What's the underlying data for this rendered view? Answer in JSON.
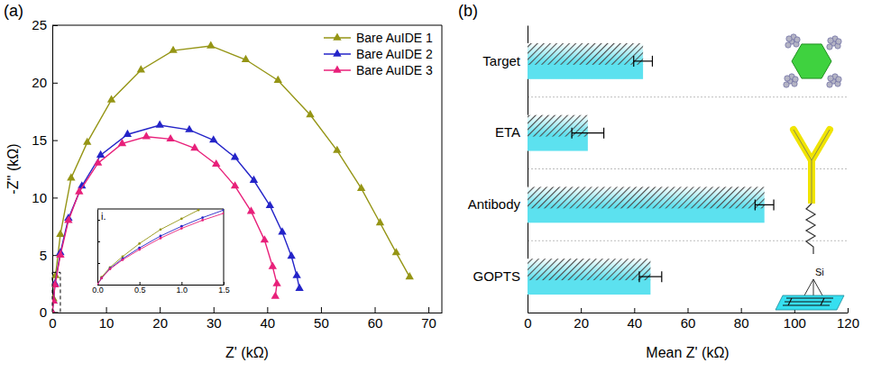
{
  "chart_data": [
    {
      "type": "line",
      "title": "(a)",
      "x_label": "Z' (kΩ)",
      "y_label": "-Z'' (kΩ)",
      "xlim": [
        0,
        72.5
      ],
      "xticks": [
        0,
        10,
        20,
        30,
        40,
        50,
        60,
        70
      ],
      "ylim": [
        0,
        25
      ],
      "yticks": [
        0,
        5,
        10,
        15,
        20,
        25
      ],
      "legend": "upper right",
      "marker": "triangle",
      "series": [
        {
          "name": "Bare AuIDE 1",
          "color": "#959515",
          "x": [
            0,
            0.2,
            0.6,
            1.5,
            3.5,
            6.5,
            11,
            16.5,
            22.5,
            29.5,
            36,
            42,
            48,
            53,
            57.5,
            61,
            64,
            66.5
          ],
          "values": [
            0,
            1.2,
            3.2,
            6.8,
            11.7,
            14.8,
            18.5,
            21.1,
            22.8,
            23.2,
            22,
            20.2,
            17.2,
            14.1,
            10.8,
            7.8,
            5.2,
            3.1
          ]
        },
        {
          "name": "Bare AuIDE 2",
          "color": "#2424c8",
          "x": [
            0,
            0.2,
            0.5,
            1.5,
            3,
            5.5,
            9,
            14,
            20,
            25.5,
            30,
            34,
            37.5,
            40.5,
            42.8,
            44.5,
            45.5,
            46
          ],
          "values": [
            0,
            1,
            2.5,
            5.2,
            8.2,
            11,
            13.7,
            15.5,
            16.3,
            15.9,
            15,
            13.5,
            11.5,
            9.3,
            7,
            4.9,
            3.2,
            2.1
          ]
        },
        {
          "name": "Bare AuIDE 3",
          "color": "#e8207a",
          "x": [
            0,
            0.2,
            0.5,
            1.5,
            3,
            5,
            8.5,
            13,
            17.5,
            22,
            26.5,
            30.5,
            34,
            37,
            39.5,
            41,
            41.8,
            41.5
          ],
          "values": [
            0,
            1,
            2.4,
            5,
            8,
            10.5,
            13,
            14.7,
            15.3,
            15.1,
            14.3,
            12.9,
            11,
            8.8,
            6.3,
            4,
            2.5,
            1.4
          ]
        }
      ]
    },
    {
      "type": "line",
      "title": "i.",
      "xlim": [
        0,
        1.5
      ],
      "xticks": [
        {
          "value": 0,
          "label": "0.0"
        },
        {
          "value": 0.5,
          "label": "0.5"
        },
        {
          "value": 1,
          "label": "1.0"
        },
        {
          "value": 1.5,
          "label": "1.5"
        }
      ],
      "ylim": [
        0,
        3.5
      ],
      "yticks": [
        0,
        1,
        2,
        3
      ],
      "tick_labels": "x",
      "marker": "circle",
      "series": [
        {
          "color": "#959515",
          "x": [
            0,
            0.05,
            0.15,
            0.3,
            0.5,
            0.75,
            1,
            1.2
          ],
          "values": [
            0,
            0.35,
            0.8,
            1.3,
            1.9,
            2.55,
            3.05,
            3.45
          ]
        },
        {
          "color": "#2424c8",
          "x": [
            0,
            0.05,
            0.15,
            0.3,
            0.5,
            0.75,
            1,
            1.25,
            1.5
          ],
          "values": [
            0,
            0.3,
            0.75,
            1.2,
            1.7,
            2.25,
            2.7,
            3.1,
            3.45
          ]
        },
        {
          "color": "#e8207a",
          "x": [
            0,
            0.05,
            0.15,
            0.3,
            0.5,
            0.75,
            1,
            1.25,
            1.5
          ],
          "values": [
            0,
            0.3,
            0.72,
            1.15,
            1.62,
            2.15,
            2.6,
            2.98,
            3.3
          ]
        }
      ]
    },
    {
      "type": "bar",
      "title": "(b)",
      "orientation": "horizontal",
      "x_label": "Mean Z' (kΩ)",
      "categories": [
        "Target",
        "ETA",
        "Antibody",
        "GOPTS"
      ],
      "values": [
        43.3,
        22.6,
        88.8,
        46.1
      ],
      "errors": [
        3.5,
        6,
        3.5,
        4.2
      ],
      "color": "#5ce1ef",
      "xlim": [
        0,
        120
      ],
      "xticks": [
        0,
        20,
        40,
        60,
        80,
        100,
        120
      ],
      "annotations": [
        "Si"
      ]
    }
  ]
}
